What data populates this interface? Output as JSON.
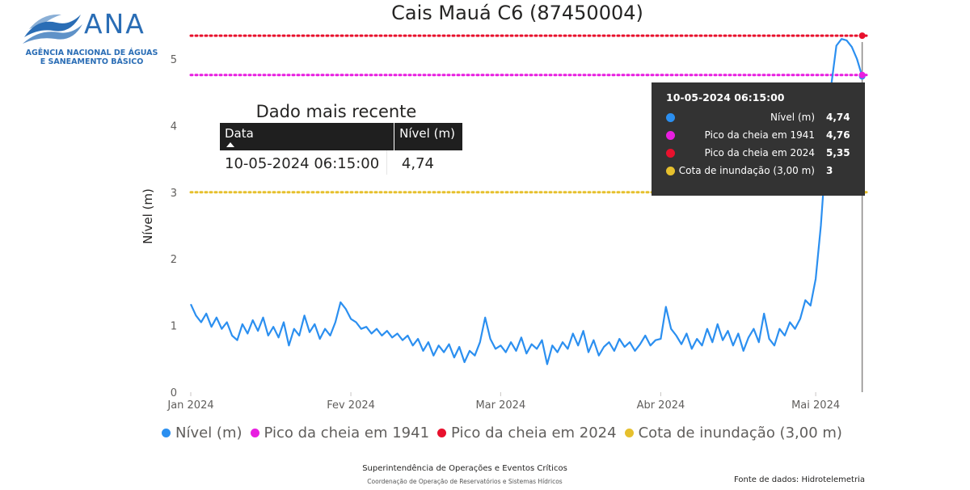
{
  "logo": {
    "word": "ANA",
    "subtitle_line1": "AGÊNCIA NACIONAL DE ÁGUAS",
    "subtitle_line2": "E SANEAMENTO BÁSICO"
  },
  "colors": {
    "nivel": "#2b8ff0",
    "pico1941": "#e81ee0",
    "pico2024": "#e8112d",
    "cota": "#e6c02d",
    "logo": "#2a6db5"
  },
  "recent": {
    "title": "Dado mais recente",
    "col_data": "Data",
    "col_nivel": "Nível (m)",
    "data_value": "10-05-2024 06:15:00",
    "nivel_value": "4,74"
  },
  "tooltip": {
    "title": "10-05-2024 06:15:00",
    "rows": [
      {
        "label": "Nível (m)",
        "value": "4,74",
        "color": "#2b8ff0"
      },
      {
        "label": "Pico da cheia em 1941",
        "value": "4,76",
        "color": "#e81ee0"
      },
      {
        "label": "Pico da cheia em 2024",
        "value": "5,35",
        "color": "#e8112d"
      },
      {
        "label": "Cota de inundação (3,00 m)",
        "value": "3",
        "color": "#e6c02d"
      }
    ]
  },
  "legend": [
    {
      "label": "Nível (m)",
      "color": "#2b8ff0"
    },
    {
      "label": "Pico da cheia em 1941",
      "color": "#e81ee0"
    },
    {
      "label": "Pico da cheia em 2024",
      "color": "#e8112d"
    },
    {
      "label": "Cota de inundação (3,00 m)",
      "color": "#e6c02d"
    }
  ],
  "footer": {
    "line1": "Superintendência de Operações e Eventos Críticos",
    "line2": "Coordenação de Operação de Reservatórios e Sistemas Hídricos",
    "source": "Fonte de dados: Hidrotelemetria"
  },
  "chart_data": {
    "type": "line",
    "title": "Cais Mauá C6 (87450004)",
    "xlabel": "",
    "ylabel": "Nível (m)",
    "ylim": [
      0,
      5.4
    ],
    "yticks": [
      0,
      1,
      2,
      3,
      4,
      5
    ],
    "xlim": [
      "2024-01-01",
      "2024-05-11"
    ],
    "xticks": [
      {
        "date": "2024-01-01",
        "label": "Jan 2024"
      },
      {
        "date": "2024-02-01",
        "label": "Fev 2024"
      },
      {
        "date": "2024-03-01",
        "label": "Mar 2024"
      },
      {
        "date": "2024-04-01",
        "label": "Abr 2024"
      },
      {
        "date": "2024-05-01",
        "label": "Mai 2024"
      }
    ],
    "grid": false,
    "legend_position": "bottom",
    "reference_lines": [
      {
        "name": "Pico da cheia em 1941",
        "y": 4.76,
        "style": "dotted",
        "color": "#e81ee0"
      },
      {
        "name": "Pico da cheia em 2024",
        "y": 5.35,
        "style": "dotted",
        "color": "#e8112d"
      },
      {
        "name": "Cota de inundação (3,00 m)",
        "y": 3.0,
        "style": "dotted",
        "color": "#e6c02d"
      }
    ],
    "hover_date": "2024-05-10",
    "series": [
      {
        "name": "Nível (m)",
        "color": "#2b8ff0",
        "points": [
          [
            "2024-01-01",
            1.32
          ],
          [
            "2024-01-02",
            1.15
          ],
          [
            "2024-01-03",
            1.05
          ],
          [
            "2024-01-04",
            1.18
          ],
          [
            "2024-01-05",
            0.98
          ],
          [
            "2024-01-06",
            1.12
          ],
          [
            "2024-01-07",
            0.95
          ],
          [
            "2024-01-08",
            1.05
          ],
          [
            "2024-01-09",
            0.85
          ],
          [
            "2024-01-10",
            0.78
          ],
          [
            "2024-01-11",
            1.02
          ],
          [
            "2024-01-12",
            0.88
          ],
          [
            "2024-01-13",
            1.08
          ],
          [
            "2024-01-14",
            0.92
          ],
          [
            "2024-01-15",
            1.12
          ],
          [
            "2024-01-16",
            0.85
          ],
          [
            "2024-01-17",
            0.98
          ],
          [
            "2024-01-18",
            0.82
          ],
          [
            "2024-01-19",
            1.05
          ],
          [
            "2024-01-20",
            0.7
          ],
          [
            "2024-01-21",
            0.95
          ],
          [
            "2024-01-22",
            0.85
          ],
          [
            "2024-01-23",
            1.15
          ],
          [
            "2024-01-24",
            0.9
          ],
          [
            "2024-01-25",
            1.02
          ],
          [
            "2024-01-26",
            0.8
          ],
          [
            "2024-01-27",
            0.95
          ],
          [
            "2024-01-28",
            0.85
          ],
          [
            "2024-01-29",
            1.05
          ],
          [
            "2024-01-30",
            1.35
          ],
          [
            "2024-01-31",
            1.25
          ],
          [
            "2024-02-01",
            1.1
          ],
          [
            "2024-02-02",
            1.05
          ],
          [
            "2024-02-03",
            0.95
          ],
          [
            "2024-02-04",
            0.98
          ],
          [
            "2024-02-05",
            0.88
          ],
          [
            "2024-02-06",
            0.95
          ],
          [
            "2024-02-07",
            0.85
          ],
          [
            "2024-02-08",
            0.92
          ],
          [
            "2024-02-09",
            0.82
          ],
          [
            "2024-02-10",
            0.88
          ],
          [
            "2024-02-11",
            0.78
          ],
          [
            "2024-02-12",
            0.85
          ],
          [
            "2024-02-13",
            0.7
          ],
          [
            "2024-02-14",
            0.8
          ],
          [
            "2024-02-15",
            0.62
          ],
          [
            "2024-02-16",
            0.75
          ],
          [
            "2024-02-17",
            0.55
          ],
          [
            "2024-02-18",
            0.7
          ],
          [
            "2024-02-19",
            0.6
          ],
          [
            "2024-02-20",
            0.72
          ],
          [
            "2024-02-21",
            0.52
          ],
          [
            "2024-02-22",
            0.68
          ],
          [
            "2024-02-23",
            0.45
          ],
          [
            "2024-02-24",
            0.62
          ],
          [
            "2024-02-25",
            0.55
          ],
          [
            "2024-02-26",
            0.75
          ],
          [
            "2024-02-27",
            1.12
          ],
          [
            "2024-02-28",
            0.8
          ],
          [
            "2024-02-29",
            0.65
          ],
          [
            "2024-03-01",
            0.7
          ],
          [
            "2024-03-02",
            0.6
          ],
          [
            "2024-03-03",
            0.75
          ],
          [
            "2024-03-04",
            0.62
          ],
          [
            "2024-03-05",
            0.82
          ],
          [
            "2024-03-06",
            0.58
          ],
          [
            "2024-03-07",
            0.72
          ],
          [
            "2024-03-08",
            0.65
          ],
          [
            "2024-03-09",
            0.78
          ],
          [
            "2024-03-10",
            0.42
          ],
          [
            "2024-03-11",
            0.7
          ],
          [
            "2024-03-12",
            0.6
          ],
          [
            "2024-03-13",
            0.75
          ],
          [
            "2024-03-14",
            0.65
          ],
          [
            "2024-03-15",
            0.88
          ],
          [
            "2024-03-16",
            0.7
          ],
          [
            "2024-03-17",
            0.92
          ],
          [
            "2024-03-18",
            0.6
          ],
          [
            "2024-03-19",
            0.78
          ],
          [
            "2024-03-20",
            0.55
          ],
          [
            "2024-03-21",
            0.68
          ],
          [
            "2024-03-22",
            0.75
          ],
          [
            "2024-03-23",
            0.62
          ],
          [
            "2024-03-24",
            0.8
          ],
          [
            "2024-03-25",
            0.68
          ],
          [
            "2024-03-26",
            0.75
          ],
          [
            "2024-03-27",
            0.62
          ],
          [
            "2024-03-28",
            0.72
          ],
          [
            "2024-03-29",
            0.85
          ],
          [
            "2024-03-30",
            0.7
          ],
          [
            "2024-03-31",
            0.78
          ],
          [
            "2024-04-01",
            0.8
          ],
          [
            "2024-04-02",
            1.28
          ],
          [
            "2024-04-03",
            0.95
          ],
          [
            "2024-04-04",
            0.85
          ],
          [
            "2024-04-05",
            0.72
          ],
          [
            "2024-04-06",
            0.88
          ],
          [
            "2024-04-07",
            0.65
          ],
          [
            "2024-04-08",
            0.8
          ],
          [
            "2024-04-09",
            0.7
          ],
          [
            "2024-04-10",
            0.95
          ],
          [
            "2024-04-11",
            0.75
          ],
          [
            "2024-04-12",
            1.02
          ],
          [
            "2024-04-13",
            0.78
          ],
          [
            "2024-04-14",
            0.92
          ],
          [
            "2024-04-15",
            0.7
          ],
          [
            "2024-04-16",
            0.88
          ],
          [
            "2024-04-17",
            0.62
          ],
          [
            "2024-04-18",
            0.82
          ],
          [
            "2024-04-19",
            0.95
          ],
          [
            "2024-04-20",
            0.75
          ],
          [
            "2024-04-21",
            1.18
          ],
          [
            "2024-04-22",
            0.8
          ],
          [
            "2024-04-23",
            0.7
          ],
          [
            "2024-04-24",
            0.95
          ],
          [
            "2024-04-25",
            0.85
          ],
          [
            "2024-04-26",
            1.05
          ],
          [
            "2024-04-27",
            0.95
          ],
          [
            "2024-04-28",
            1.1
          ],
          [
            "2024-04-29",
            1.38
          ],
          [
            "2024-04-30",
            1.3
          ],
          [
            "2024-05-01",
            1.7
          ],
          [
            "2024-05-02",
            2.5
          ],
          [
            "2024-05-03",
            3.6
          ],
          [
            "2024-05-04",
            4.6
          ],
          [
            "2024-05-05",
            5.2
          ],
          [
            "2024-05-06",
            5.3
          ],
          [
            "2024-05-07",
            5.28
          ],
          [
            "2024-05-08",
            5.18
          ],
          [
            "2024-05-09",
            5.0
          ],
          [
            "2024-05-10",
            4.74
          ]
        ]
      }
    ]
  }
}
